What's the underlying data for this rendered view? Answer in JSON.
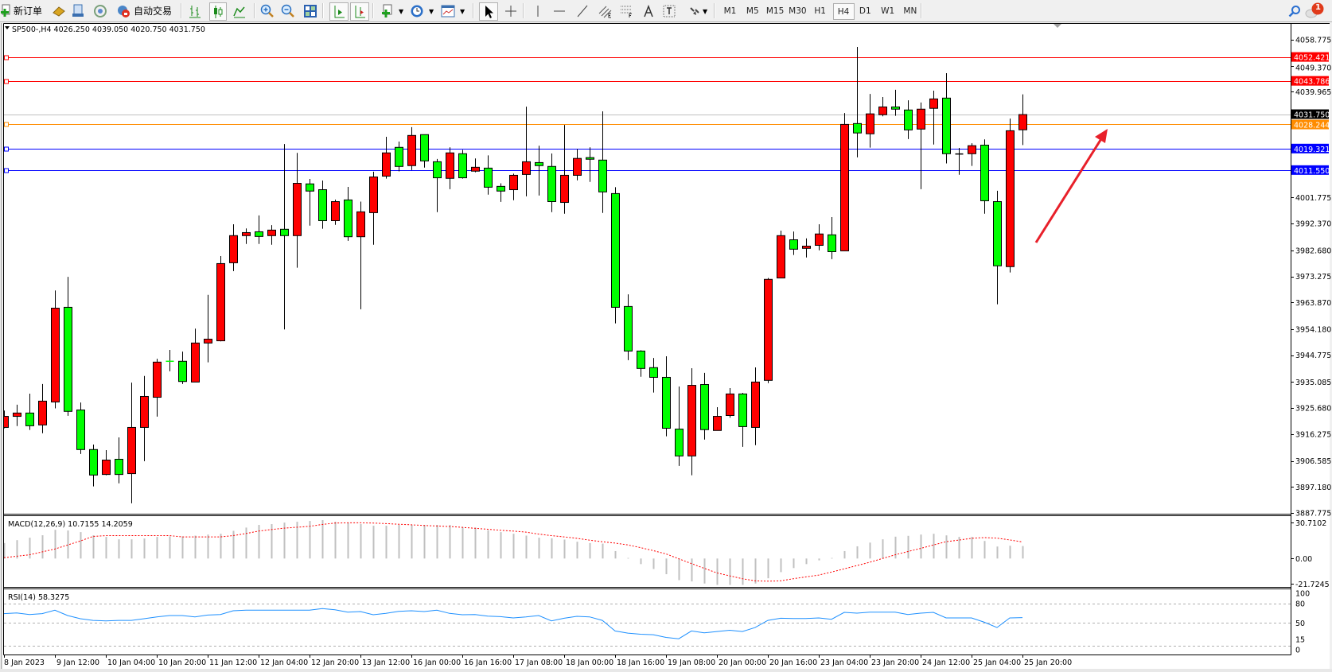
{
  "toolbar": {
    "new_order_label": "新订单",
    "auto_trade_label": "自动交易",
    "icons": [
      "new-order-icon",
      "gold-icon",
      "market-watch-icon",
      "signals-icon",
      "auto-trading-icon",
      "bar-chart-icon",
      "candlestick-icon",
      "line-chart-icon",
      "zoom-in-icon",
      "zoom-out-icon",
      "tile-windows-icon",
      "autoscroll-icon",
      "chart-shift-icon",
      "indicators-icon",
      "periods-icon",
      "templates-icon",
      "cursor-icon",
      "crosshair-icon",
      "vertical-line-icon",
      "horizontal-line-icon",
      "trendline-icon",
      "equidistant-channel-icon",
      "fibonacci-icon",
      "text-icon",
      "text-label-icon",
      "arrows-icon",
      "search-icon",
      "notifications-icon"
    ],
    "timeframes": [
      "M1",
      "M5",
      "M15",
      "M30",
      "H1",
      "H4",
      "D1",
      "W1",
      "MN"
    ],
    "active_timeframe": "H4",
    "notification_count": "1"
  },
  "chart": {
    "header": "SP500-,H4  4026.250 4039.050 4020.750 4031.750",
    "symbol": "SP500-",
    "timeframe": "H4",
    "ohlc": {
      "open": 4026.25,
      "high": 4039.05,
      "low": 4020.75,
      "close": 4031.75
    },
    "colors": {
      "bull": "#ff0000",
      "bear": "#00ff00",
      "wick": "#000000",
      "background": "#ffffff"
    },
    "price_ticks": [
      "4058.775",
      "4049.370",
      "4039.965",
      "4001.775",
      "3992.370",
      "3982.680",
      "3973.275",
      "3963.870",
      "3954.180",
      "3944.775",
      "3935.085",
      "3925.680",
      "3916.275",
      "3906.585",
      "3897.180",
      "3887.775"
    ],
    "price_range": [
      3887.775,
      4058.775
    ],
    "levels": [
      {
        "price": 4052.421,
        "label": "4052.421",
        "color": "#ff0000"
      },
      {
        "price": 4043.786,
        "label": "4043.786",
        "color": "#ff0000"
      },
      {
        "price": 4031.75,
        "label": "4031.750",
        "color": "#c0c0c0",
        "label_bg": "#000000"
      },
      {
        "price": 4028.244,
        "label": "4028.244",
        "color": "#ff8c00"
      },
      {
        "price": 4019.321,
        "label": "4019.321",
        "color": "#0000ff"
      },
      {
        "price": 4011.55,
        "label": "4011.550",
        "color": "#0000ff"
      }
    ],
    "annotation_arrow_color": "#e8202a",
    "candles": [
      [
        3918.7,
        3924.8,
        3918.4,
        3922.7
      ],
      [
        3922.7,
        3926.9,
        3919.2,
        3923.9
      ],
      [
        3923.9,
        3930.9,
        3917.8,
        3919.3
      ],
      [
        3919.6,
        3934.4,
        3916.6,
        3928.2
      ],
      [
        3927.9,
        3968.2,
        3925.6,
        3961.8
      ],
      [
        3962.1,
        3973.1,
        3922.9,
        3924.5
      ],
      [
        3925.0,
        3927.7,
        3909.1,
        3910.7
      ],
      [
        3910.7,
        3912.5,
        3897.4,
        3901.5
      ],
      [
        3901.7,
        3910.5,
        3901.4,
        3906.9
      ],
      [
        3907.2,
        3915.1,
        3898.5,
        3901.7
      ],
      [
        3902.0,
        3934.9,
        3891.3,
        3918.7
      ],
      [
        3918.7,
        3937.3,
        3906.5,
        3929.9
      ],
      [
        3929.6,
        3943.5,
        3922.6,
        3942.3
      ],
      [
        3942.6,
        3946.7,
        3939.0,
        3942.6
      ],
      [
        3942.6,
        3946.1,
        3934.4,
        3935.3
      ],
      [
        3935.1,
        3954.4,
        3935.1,
        3949.2
      ],
      [
        3949.2,
        3966.6,
        3942.2,
        3950.6
      ],
      [
        3950.0,
        3980.6,
        3949.8,
        3977.9
      ],
      [
        3978.2,
        3992.1,
        3975.2,
        3988.0
      ],
      [
        3988.0,
        3990.6,
        3985.0,
        3989.1
      ],
      [
        3989.4,
        3995.3,
        3985.0,
        3987.7
      ],
      [
        3988.0,
        3991.8,
        3984.7,
        3990.0
      ],
      [
        3990.3,
        4021.1,
        3954.1,
        3988.0
      ],
      [
        3988.0,
        4017.9,
        3976.4,
        4006.9
      ],
      [
        4006.7,
        4008.5,
        3991.6,
        4004.1
      ],
      [
        4004.6,
        4007.9,
        3990.5,
        3993.4
      ],
      [
        3993.4,
        4001.0,
        3991.9,
        4000.3
      ],
      [
        4000.9,
        4005.6,
        3986.1,
        3987.6
      ],
      [
        3987.6,
        4000.3,
        3961.4,
        3996.6
      ],
      [
        3996.3,
        4011.1,
        3984.7,
        4009.2
      ],
      [
        4009.5,
        4023.7,
        4008.6,
        4017.9
      ],
      [
        4019.9,
        4022.0,
        4011.2,
        4013.0
      ],
      [
        4013.3,
        4027.2,
        4011.7,
        4024.2
      ],
      [
        4024.5,
        4024.5,
        4012.6,
        4015.0
      ],
      [
        4014.7,
        4015.7,
        3996.5,
        4008.9
      ],
      [
        4008.7,
        4019.9,
        4004.8,
        4017.9
      ],
      [
        4017.6,
        4019.0,
        4008.6,
        4008.9
      ],
      [
        4011.3,
        4015.9,
        4010.9,
        4012.7
      ],
      [
        4012.4,
        4017.0,
        4002.8,
        4005.5
      ],
      [
        4005.8,
        4006.9,
        4000.2,
        4004.1
      ],
      [
        4004.6,
        4010.4,
        4000.8,
        4009.8
      ],
      [
        4010.1,
        4034.6,
        4002.2,
        4014.7
      ],
      [
        4014.4,
        4020.5,
        4002.5,
        4013.3
      ],
      [
        4013.0,
        4017.7,
        3996.5,
        4000.3
      ],
      [
        4000.0,
        4028.0,
        3995.9,
        4009.8
      ],
      [
        4009.8,
        4019.3,
        4008.0,
        4015.9
      ],
      [
        4016.2,
        4019.9,
        4007.4,
        4015.6
      ],
      [
        4015.3,
        4032.9,
        3996.2,
        4003.8
      ],
      [
        4003.2,
        4005.5,
        3956.3,
        3962.1
      ],
      [
        3962.4,
        3966.8,
        3943.0,
        3946.3
      ],
      [
        3946.3,
        3946.6,
        3937.0,
        3940.0
      ],
      [
        3940.3,
        3943.8,
        3931.3,
        3936.8
      ],
      [
        3936.8,
        3944.4,
        3915.5,
        3918.4
      ],
      [
        3918.1,
        3933.5,
        3904.8,
        3908.4
      ],
      [
        3908.4,
        3940.1,
        3901.4,
        3933.9
      ],
      [
        3934.2,
        3938.4,
        3914.3,
        3917.9
      ],
      [
        3917.6,
        3926.0,
        3917.6,
        3922.7
      ],
      [
        3923.0,
        3932.9,
        3922.2,
        3930.8
      ],
      [
        3930.8,
        3931.2,
        3911.7,
        3919.0
      ],
      [
        3918.7,
        3940.4,
        3912.3,
        3935.1
      ],
      [
        3935.7,
        3972.7,
        3934.7,
        3972.2
      ],
      [
        3972.7,
        3989.8,
        3972.7,
        3988.0
      ],
      [
        3986.5,
        3989.5,
        3981.0,
        3983.1
      ],
      [
        3983.4,
        3987.0,
        3980.1,
        3984.2
      ],
      [
        3984.5,
        3992.1,
        3982.7,
        3988.6
      ],
      [
        3988.3,
        3994.7,
        3979.5,
        3982.2
      ],
      [
        3982.5,
        4032.3,
        3982.5,
        4028.2
      ],
      [
        4028.5,
        4056.2,
        4016.3,
        4025.1
      ],
      [
        4024.8,
        4039.2,
        4019.8,
        4032.0
      ],
      [
        4031.7,
        4038.1,
        4031.1,
        4034.5
      ],
      [
        4034.5,
        4040.7,
        4031.3,
        4033.7
      ],
      [
        4033.4,
        4036.9,
        4022.9,
        4026.2
      ],
      [
        4026.5,
        4036.1,
        4004.8,
        4033.7
      ],
      [
        4034.0,
        4040.4,
        4020.9,
        4037.4
      ],
      [
        4037.7,
        4046.7,
        4014.1,
        4017.6
      ],
      [
        4017.5,
        4019.7,
        4010.0,
        4017.5
      ],
      [
        4017.6,
        4021.4,
        4013.2,
        4020.5
      ],
      [
        4020.7,
        4022.8,
        3995.9,
        4000.6
      ],
      [
        4000.3,
        4004.2,
        3963.2,
        3977.1
      ],
      [
        3976.8,
        4030.3,
        3974.7,
        4025.9
      ],
      [
        4026.25,
        4039.05,
        4020.75,
        4031.75
      ]
    ],
    "time_labels": [
      "8 Jan 2023",
      "9 Jan 12:00",
      "10 Jan 04:00",
      "10 Jan 20:00",
      "11 Jan 12:00",
      "12 Jan 04:00",
      "12 Jan 20:00",
      "13 Jan 12:00",
      "16 Jan 00:00",
      "16 Jan 16:00",
      "17 Jan 08:00",
      "18 Jan 00:00",
      "18 Jan 16:00",
      "19 Jan 08:00",
      "20 Jan 00:00",
      "20 Jan 16:00",
      "23 Jan 04:00",
      "23 Jan 20:00",
      "24 Jan 12:00",
      "25 Jan 04:00",
      "25 Jan 20:00"
    ]
  },
  "macd": {
    "title": "MACD(12,26,9) 10.7155 14.2059",
    "scale_labels": [
      "30.7102",
      "0.00",
      "-21.7245"
    ],
    "scale_values": [
      30.7102,
      0,
      -21.7245
    ],
    "histogram_color": "#c0c0c0",
    "signal_color": "#ff0000",
    "histogram": [
      13.3,
      15.8,
      17.9,
      20.0,
      24.7,
      24.1,
      22.7,
      20.0,
      18.6,
      16.5,
      16.5,
      17.2,
      18.6,
      19.0,
      19.0,
      19.7,
      20.6,
      21.3,
      23.8,
      26.6,
      28.9,
      29.6,
      30.9,
      31.6,
      32.3,
      33.0,
      31.6,
      30.9,
      29.6,
      28.2,
      28.2,
      28.9,
      28.9,
      28.9,
      28.9,
      28.9,
      27.0,
      26.6,
      24.3,
      22.7,
      21.3,
      19.7,
      17.9,
      17.4,
      16.3,
      14.4,
      13.3,
      12.8,
      6.4,
      0.5,
      -4.8,
      -9.0,
      -13.5,
      -18.6,
      -19.7,
      -21.5,
      -22.7,
      -22.7,
      -22.7,
      -21.5,
      -17.0,
      -11.7,
      -8.2,
      -4.8,
      -1.6,
      0.5,
      6.4,
      10.5,
      13.7,
      16.5,
      18.8,
      19.5,
      20.6,
      21.3,
      19.9,
      18.6,
      18.6,
      15.1,
      10.3,
      11.0,
      10.72
    ],
    "signal": [
      0.7,
      2.0,
      3.2,
      5.7,
      8.2,
      11.6,
      15.1,
      19.0,
      19.7,
      19.7,
      19.7,
      19.7,
      19.7,
      19.7,
      18.6,
      18.6,
      18.6,
      18.6,
      19.7,
      21.5,
      23.6,
      24.9,
      26.1,
      26.9,
      27.7,
      29.3,
      30.5,
      30.7,
      30.7,
      30.5,
      30.0,
      29.5,
      29.0,
      28.4,
      28.0,
      27.5,
      26.8,
      26.0,
      25.2,
      24.3,
      23.6,
      22.7,
      21.0,
      19.7,
      18.6,
      17.4,
      15.8,
      14.4,
      13.3,
      11.7,
      9.4,
      6.8,
      4.0,
      -0.2,
      -4.4,
      -8.4,
      -12.4,
      -14.9,
      -17.4,
      -19.2,
      -19.5,
      -19.2,
      -17.4,
      -15.8,
      -14.2,
      -11.6,
      -8.9,
      -6.0,
      -3.2,
      0.0,
      3.2,
      6.0,
      8.7,
      11.6,
      14.4,
      15.9,
      17.4,
      18.0,
      17.5,
      16.0,
      14.21
    ]
  },
  "rsi": {
    "title": "RSI(14) 58.3275",
    "scale_labels": [
      "100",
      "80",
      "50",
      "15",
      "0"
    ],
    "levels": [
      80,
      50,
      15
    ],
    "line_color": "#1e90ff",
    "values": [
      64.4,
      65.6,
      63.1,
      64.4,
      69.7,
      61.5,
      56.6,
      54.1,
      53.3,
      54.1,
      54.1,
      56.6,
      59.4,
      61.5,
      61.5,
      59.4,
      62.3,
      63.1,
      68.9,
      69.7,
      69.7,
      69.7,
      69.7,
      69.7,
      69.7,
      72.1,
      70.5,
      66.8,
      67.6,
      62.7,
      64.8,
      68.0,
      68.9,
      67.6,
      69.7,
      64.8,
      62.7,
      63.1,
      60.7,
      59.8,
      57.8,
      59.4,
      61.5,
      53.3,
      57.4,
      60.3,
      59.4,
      54.1,
      37.7,
      34.4,
      32.8,
      32.0,
      27.9,
      25.8,
      37.7,
      34.8,
      36.9,
      38.9,
      36.9,
      43.0,
      54.1,
      57.4,
      57.0,
      57.0,
      57.8,
      55.7,
      66.4,
      65.2,
      66.8,
      66.8,
      66.8,
      63.1,
      65.2,
      66.4,
      57.8,
      57.8,
      57.8,
      51.2,
      43.0,
      57.8,
      58.33
    ]
  }
}
